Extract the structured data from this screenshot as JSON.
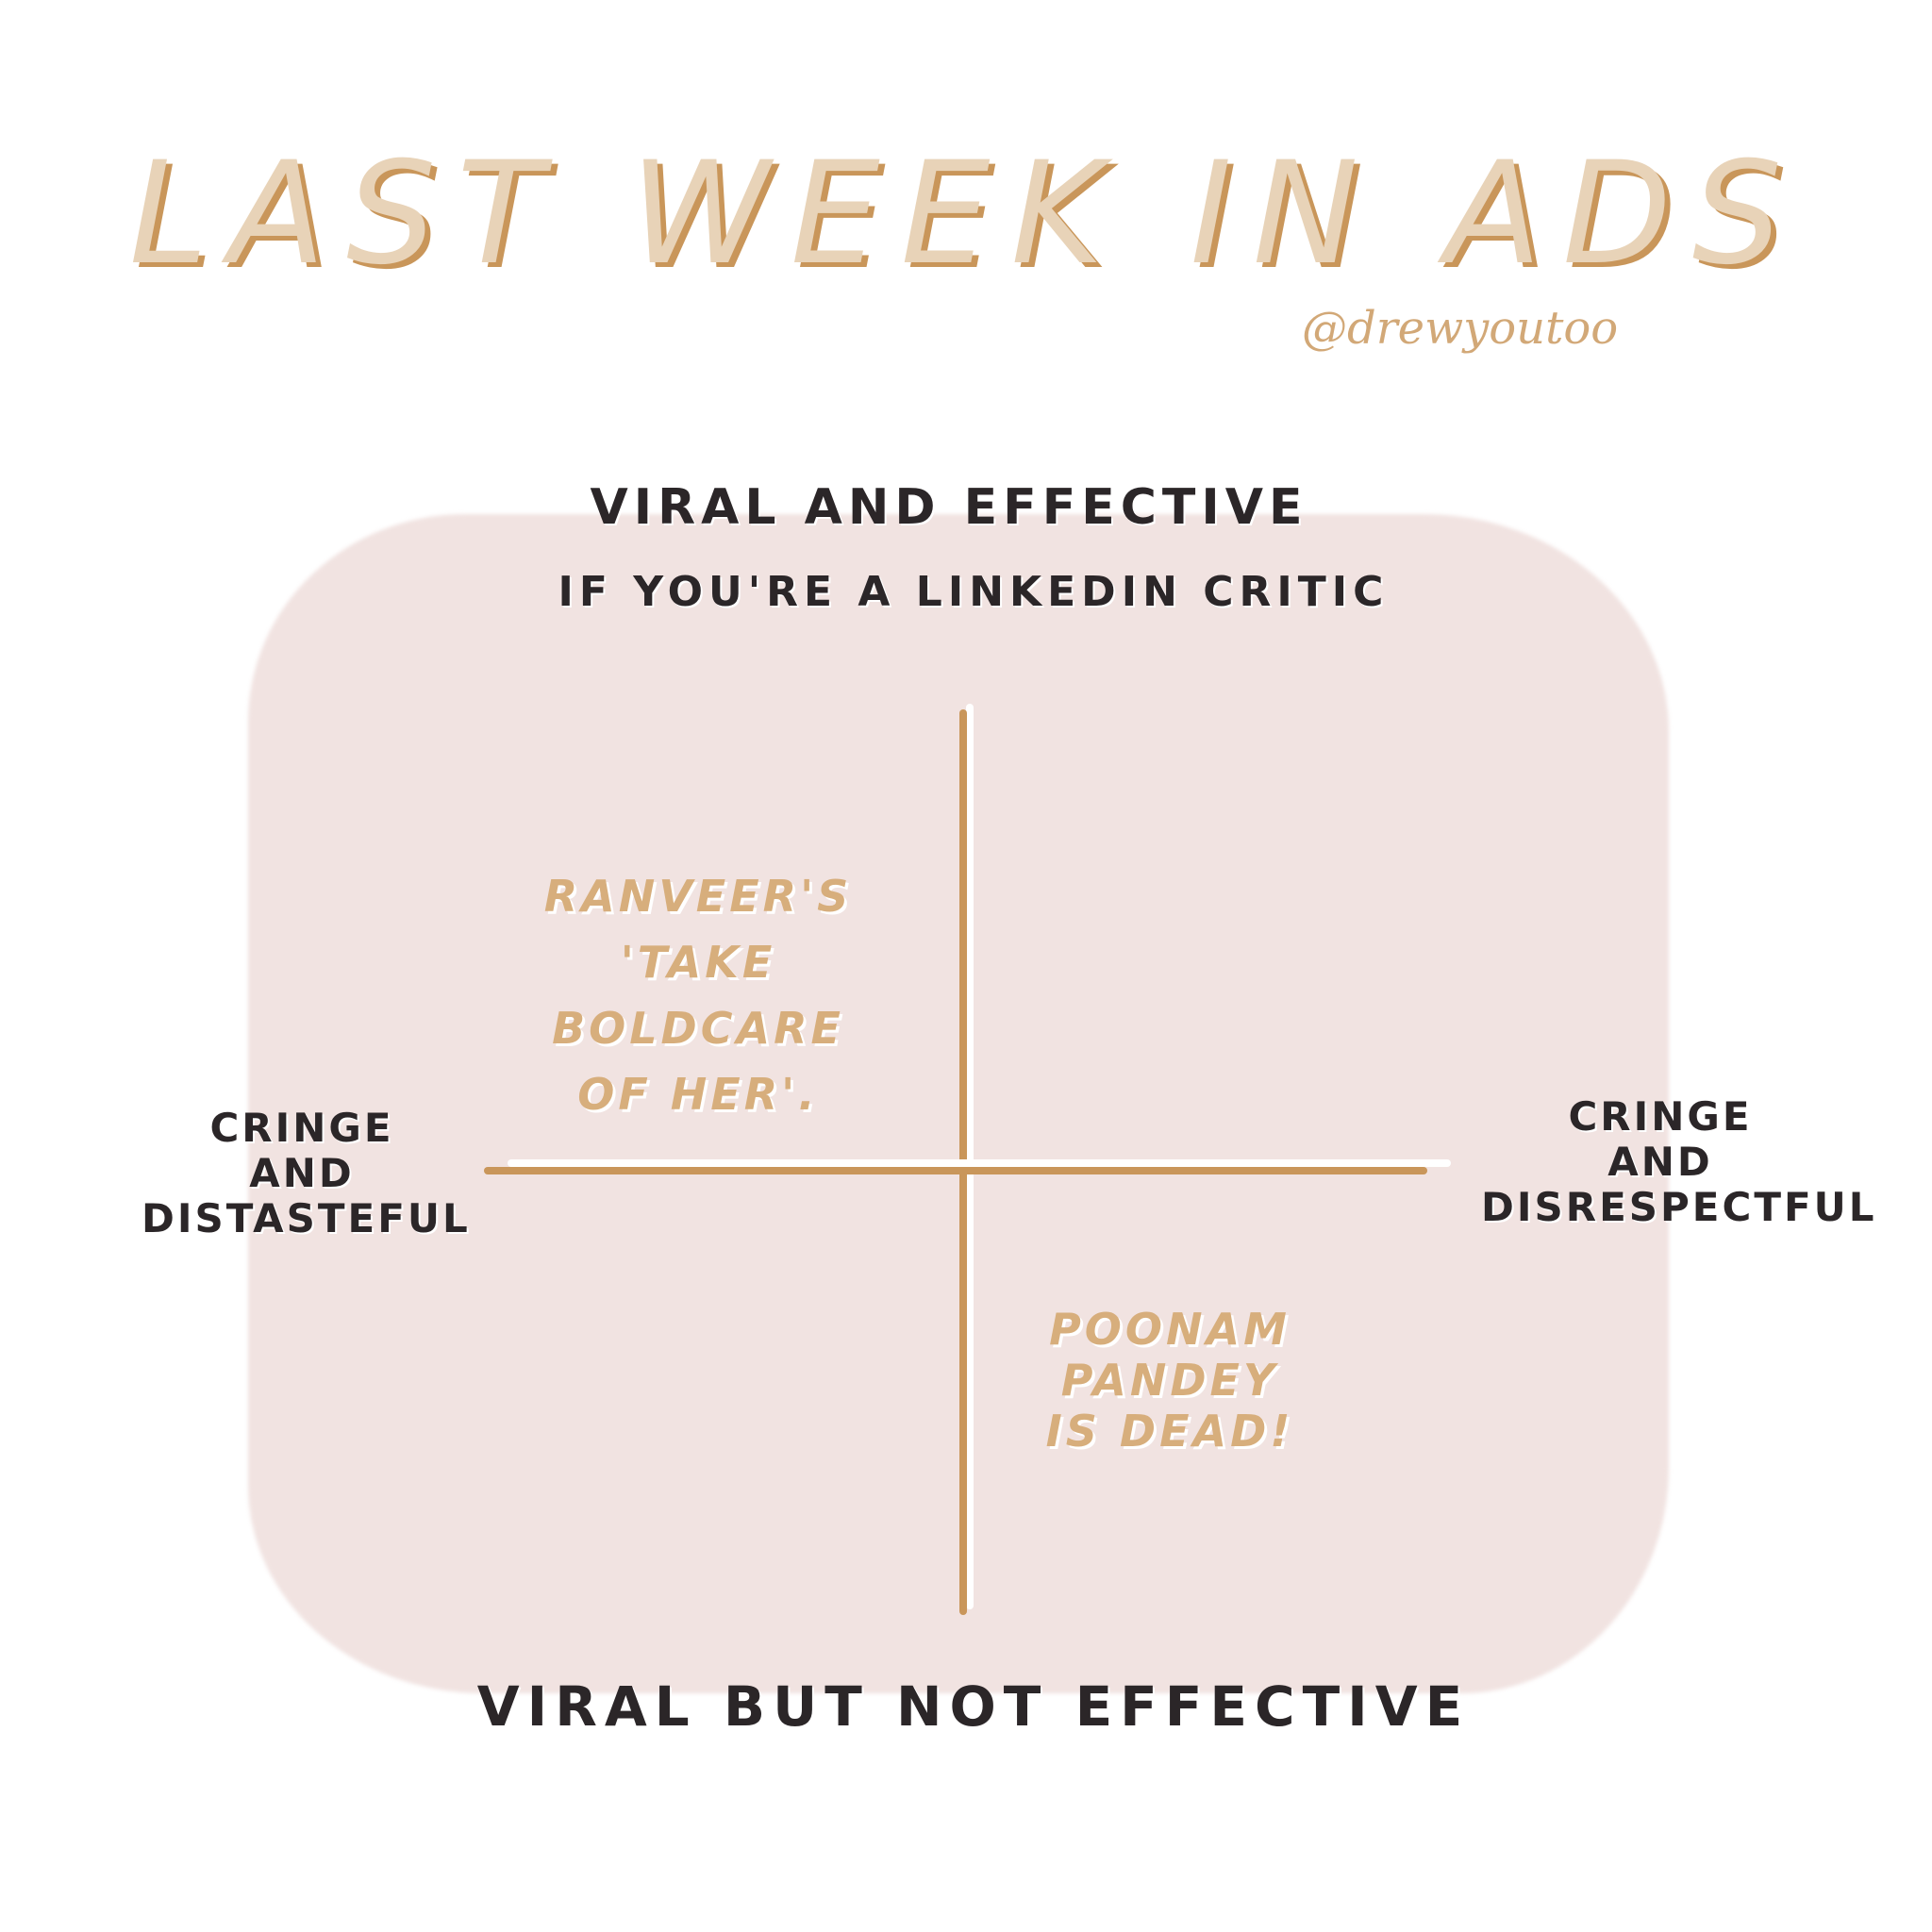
{
  "title": "LAST WEEK IN ADS",
  "handle": "@drewyoutoo",
  "axes": {
    "top": "VIRAL AND EFFECTIVE",
    "top_subtitle": "IF YOU'RE A LINKEDIN CRITIC",
    "bottom": "VIRAL BUT NOT EFFECTIVE",
    "left": [
      "CRINGE",
      "AND",
      "DISTASTEFUL"
    ],
    "right": [
      "CRINGE",
      "AND",
      "DISRESPECTFUL"
    ]
  },
  "items": [
    {
      "quadrant": "top-left",
      "lines": [
        "RANVEER'S",
        "'TAKE BOLDCARE",
        "OF HER'."
      ]
    },
    {
      "quadrant": "bottom-right",
      "lines": [
        "POONAM",
        "PANDEY",
        "IS DEAD!"
      ]
    }
  ],
  "colors": {
    "accent": "#c9965a",
    "title_fill": "#e8d3b8",
    "background_blob": "#f1e3e1",
    "text": "#2b2628"
  }
}
